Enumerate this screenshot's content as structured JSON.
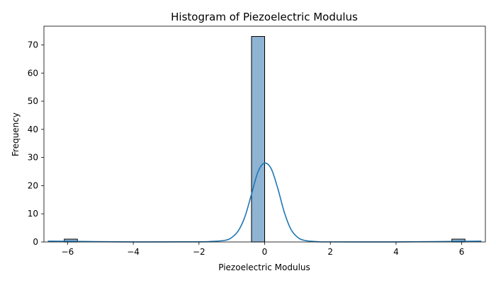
{
  "chart_data": {
    "type": "bar",
    "title": "Histogram of Piezoelectric Modulus",
    "xlabel": "Piezoelectric Modulus",
    "ylabel": "Frequency",
    "xlim": [
      -6.72,
      6.72
    ],
    "ylim": [
      0,
      76.65
    ],
    "x_ticks": [
      -6,
      -4,
      -2,
      0,
      2,
      4,
      6
    ],
    "x_tick_labels": [
      "−6",
      "−4",
      "−2",
      "0",
      "2",
      "4",
      "6"
    ],
    "y_ticks": [
      0,
      10,
      20,
      30,
      40,
      50,
      60,
      70
    ],
    "y_tick_labels": [
      "0",
      "10",
      "20",
      "30",
      "40",
      "50",
      "60",
      "70"
    ],
    "bins": [
      {
        "x0": -6.1,
        "x1": -5.7,
        "count": 1
      },
      {
        "x0": -0.4,
        "x1": 0.0,
        "count": 73
      },
      {
        "x0": 5.7,
        "x1": 6.1,
        "count": 1
      }
    ],
    "kde": {
      "x": [
        -6.6,
        -4.0,
        -2.0,
        -1.6,
        -1.2,
        -1.0,
        -0.8,
        -0.6,
        -0.4,
        -0.2,
        0.0,
        0.2,
        0.4,
        0.6,
        0.8,
        1.0,
        1.2,
        1.6,
        2.0,
        4.0,
        6.6
      ],
      "y": [
        0.3,
        0.02,
        0.05,
        0.2,
        0.6,
        1.6,
        4.0,
        9.0,
        17.0,
        25.0,
        28.0,
        26.0,
        19.0,
        10.5,
        4.5,
        1.7,
        0.6,
        0.1,
        0.03,
        0.02,
        0.3
      ]
    },
    "bar_color": "#8fb3d3",
    "bar_edge_color": "#000000",
    "kde_color": "#1f77b4",
    "grid": false
  }
}
